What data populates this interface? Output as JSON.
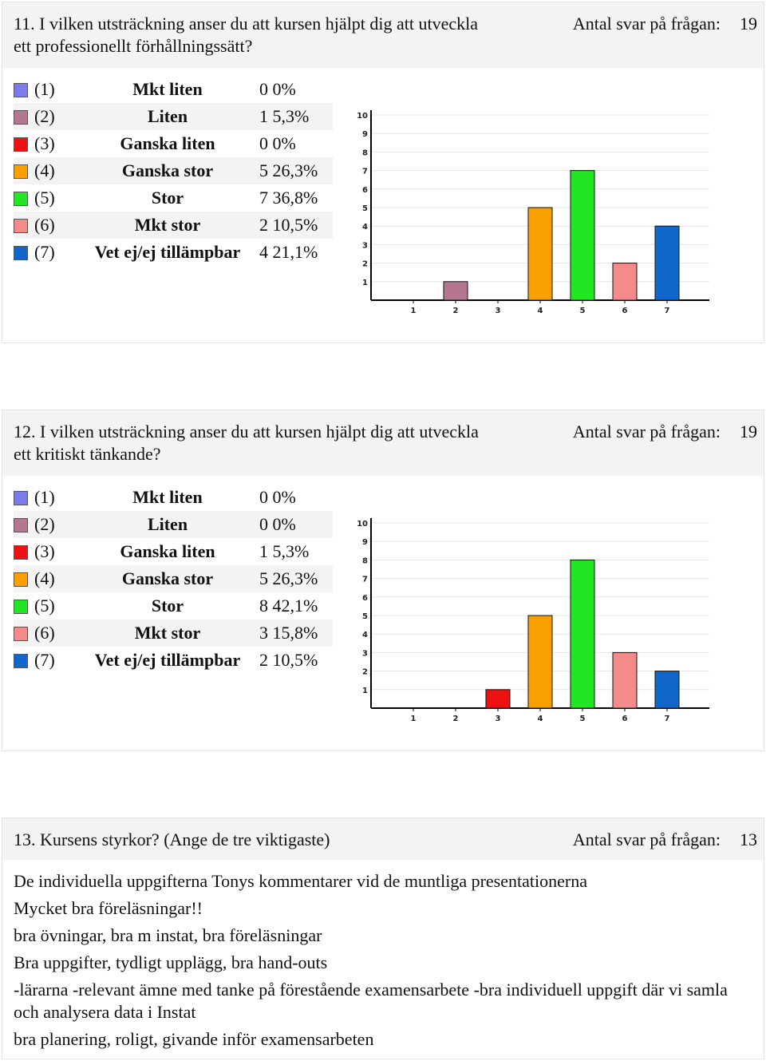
{
  "q11": {
    "title": "11. I vilken utsträckning anser du att kursen hjälpt dig att utveckla ett professionellt förhållningssätt?",
    "count_label": "Antal svar på frågan:",
    "count": "19",
    "options": [
      {
        "code": "(1)",
        "label": "Mkt liten",
        "value": "0 0%",
        "color": "#7b7bea"
      },
      {
        "code": "(2)",
        "label": "Liten",
        "value": "1 5,3%",
        "color": "#b47690"
      },
      {
        "code": "(3)",
        "label": "Ganska liten",
        "value": "0 0%",
        "color": "#ee1111"
      },
      {
        "code": "(4)",
        "label": "Ganska stor",
        "value": "5 26,3%",
        "color": "#f7a000"
      },
      {
        "code": "(5)",
        "label": "Stor",
        "value": "7 36,8%",
        "color": "#22e622"
      },
      {
        "code": "(6)",
        "label": "Mkt stor",
        "value": "2 10,5%",
        "color": "#f58a8a"
      },
      {
        "code": "(7)",
        "label": "Vet ej/ej tillämpbar",
        "value": "4 21,1%",
        "color": "#1166cc"
      }
    ],
    "chart_data": {
      "type": "bar",
      "categories": [
        "1",
        "2",
        "3",
        "4",
        "5",
        "6",
        "7"
      ],
      "values": [
        0,
        1,
        0,
        5,
        7,
        2,
        4
      ],
      "ylim": [
        0,
        10
      ],
      "yticks": [
        "1",
        "2",
        "3",
        "4",
        "5",
        "6",
        "7",
        "8",
        "9",
        "10"
      ],
      "colors": [
        "#7b7bea",
        "#b47690",
        "#ee1111",
        "#f7a000",
        "#22e622",
        "#f58a8a",
        "#1166cc"
      ]
    }
  },
  "q12": {
    "title": "12. I vilken utsträckning anser du att kursen hjälpt dig att utveckla ett kritiskt tänkande?",
    "count_label": "Antal svar på frågan:",
    "count": "19",
    "options": [
      {
        "code": "(1)",
        "label": "Mkt liten",
        "value": "0 0%",
        "color": "#7b7bea"
      },
      {
        "code": "(2)",
        "label": "Liten",
        "value": "0 0%",
        "color": "#b47690"
      },
      {
        "code": "(3)",
        "label": "Ganska liten",
        "value": "1 5,3%",
        "color": "#ee1111"
      },
      {
        "code": "(4)",
        "label": "Ganska stor",
        "value": "5 26,3%",
        "color": "#f7a000"
      },
      {
        "code": "(5)",
        "label": "Stor",
        "value": "8 42,1%",
        "color": "#22e622"
      },
      {
        "code": "(6)",
        "label": "Mkt stor",
        "value": "3 15,8%",
        "color": "#f58a8a"
      },
      {
        "code": "(7)",
        "label": "Vet ej/ej tillämpbar",
        "value": "2 10,5%",
        "color": "#1166cc"
      }
    ],
    "chart_data": {
      "type": "bar",
      "categories": [
        "1",
        "2",
        "3",
        "4",
        "5",
        "6",
        "7"
      ],
      "values": [
        0,
        0,
        1,
        5,
        8,
        3,
        2
      ],
      "ylim": [
        0,
        10
      ],
      "yticks": [
        "1",
        "2",
        "3",
        "4",
        "5",
        "6",
        "7",
        "8",
        "9",
        "10"
      ],
      "colors": [
        "#7b7bea",
        "#b47690",
        "#ee1111",
        "#f7a000",
        "#22e622",
        "#f58a8a",
        "#1166cc"
      ]
    }
  },
  "q13": {
    "title": "13. Kursens styrkor? (Ange de tre viktigaste)",
    "count_label": "Antal svar på frågan:",
    "count": "13",
    "answers": [
      "De individuella uppgifterna Tonys kommentarer vid de muntliga presentationerna",
      "Mycket bra föreläsningar!!",
      "bra övningar, bra m instat, bra föreläsningar",
      "Bra uppgifter, tydligt upplägg, bra hand-outs",
      "-lärarna -relevant ämne med tanke på förestående examensarbete -bra individuell uppgift där vi samla och analysera data i Instat",
      "bra planering, roligt, givande inför examensarbeten"
    ]
  }
}
